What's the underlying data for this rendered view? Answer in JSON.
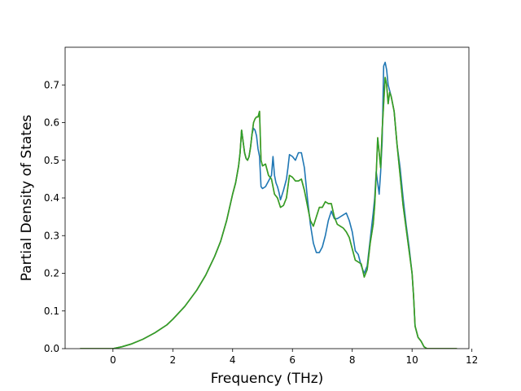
{
  "chart_data": {
    "type": "line",
    "title": "",
    "xlabel": "Frequency (THz)",
    "ylabel": "Partial Density of States",
    "xlim": [
      -1.6,
      11.9
    ],
    "ylim": [
      0.0,
      0.8
    ],
    "xticks": [
      0,
      2,
      4,
      6,
      8,
      10,
      12
    ],
    "xtick_labels": [
      "0",
      "2",
      "4",
      "6",
      "8",
      "10",
      "12"
    ],
    "yticks": [
      0.0,
      0.1,
      0.2,
      0.3,
      0.4,
      0.5,
      0.6,
      0.7
    ],
    "ytick_labels": [
      "0.0",
      "0.1",
      "0.2",
      "0.3",
      "0.4",
      "0.5",
      "0.6",
      "0.7"
    ],
    "grid": false,
    "legend": "none",
    "series": [
      {
        "color": "#1f77b4",
        "x": [
          -1.1,
          -0.5,
          0.0,
          0.3,
          0.6,
          1.0,
          1.4,
          1.8,
          2.0,
          2.4,
          2.8,
          3.1,
          3.4,
          3.6,
          3.8,
          3.9,
          4.0,
          4.1,
          4.2,
          4.25,
          4.3,
          4.35,
          4.4,
          4.45,
          4.5,
          4.55,
          4.6,
          4.65,
          4.7,
          4.75,
          4.8,
          4.85,
          4.9,
          4.95,
          5.0,
          5.1,
          5.2,
          5.3,
          5.35,
          5.4,
          5.45,
          5.5,
          5.55,
          5.6,
          5.7,
          5.8,
          5.85,
          5.9,
          6.0,
          6.1,
          6.2,
          6.3,
          6.4,
          6.5,
          6.6,
          6.7,
          6.8,
          6.9,
          7.0,
          7.1,
          7.2,
          7.3,
          7.4,
          7.5,
          7.6,
          7.7,
          7.8,
          7.9,
          8.0,
          8.1,
          8.2,
          8.3,
          8.4,
          8.5,
          8.6,
          8.7,
          8.75,
          8.8,
          8.85,
          8.9,
          8.95,
          9.0,
          9.05,
          9.1,
          9.15,
          9.2,
          9.3,
          9.4,
          9.5,
          9.6,
          9.7,
          9.8,
          9.9,
          10.0,
          10.05,
          10.1,
          10.2,
          10.3,
          10.4,
          10.5,
          11.5
        ],
        "values": [
          0.0,
          0.0,
          0.0,
          0.005,
          0.012,
          0.025,
          0.042,
          0.063,
          0.078,
          0.112,
          0.155,
          0.195,
          0.245,
          0.285,
          0.34,
          0.375,
          0.41,
          0.44,
          0.485,
          0.52,
          0.58,
          0.55,
          0.52,
          0.505,
          0.5,
          0.51,
          0.535,
          0.57,
          0.585,
          0.58,
          0.565,
          0.53,
          0.51,
          0.43,
          0.425,
          0.43,
          0.445,
          0.46,
          0.51,
          0.46,
          0.44,
          0.43,
          0.415,
          0.395,
          0.42,
          0.45,
          0.48,
          0.515,
          0.51,
          0.5,
          0.52,
          0.52,
          0.48,
          0.4,
          0.33,
          0.28,
          0.255,
          0.255,
          0.27,
          0.3,
          0.34,
          0.365,
          0.345,
          0.345,
          0.35,
          0.355,
          0.36,
          0.34,
          0.31,
          0.26,
          0.25,
          0.22,
          0.2,
          0.22,
          0.29,
          0.36,
          0.4,
          0.47,
          0.44,
          0.41,
          0.47,
          0.55,
          0.75,
          0.76,
          0.74,
          0.7,
          0.67,
          0.63,
          0.54,
          0.48,
          0.4,
          0.33,
          0.27,
          0.2,
          0.14,
          0.06,
          0.03,
          0.02,
          0.005,
          0.0,
          0.0
        ]
      },
      {
        "color": "#ff7f0e",
        "x": [
          -1.1,
          -0.5,
          0.0,
          0.3,
          0.6,
          1.0,
          1.4,
          1.8,
          2.0,
          2.4,
          2.8,
          3.1,
          3.4,
          3.6,
          3.8,
          3.9,
          4.0,
          4.1,
          4.2,
          4.25,
          4.3,
          4.35,
          4.4,
          4.45,
          4.5,
          4.55,
          4.6,
          4.65,
          4.7,
          4.75,
          4.8,
          4.85,
          4.9,
          4.95,
          5.0,
          5.1,
          5.2,
          5.3,
          5.4,
          5.5,
          5.6,
          5.7,
          5.8,
          5.9,
          6.0,
          6.1,
          6.2,
          6.3,
          6.4,
          6.5,
          6.6,
          6.7,
          6.8,
          6.9,
          7.0,
          7.1,
          7.2,
          7.3,
          7.4,
          7.5,
          7.6,
          7.7,
          7.8,
          7.9,
          8.0,
          8.1,
          8.2,
          8.3,
          8.4,
          8.5,
          8.6,
          8.7,
          8.75,
          8.8,
          8.85,
          8.9,
          8.95,
          9.0,
          9.05,
          9.1,
          9.15,
          9.2,
          9.25,
          9.3,
          9.4,
          9.5,
          9.6,
          9.7,
          9.8,
          9.9,
          10.0,
          10.05,
          10.1,
          10.2,
          10.3,
          10.4,
          10.5,
          11.5
        ],
        "values": [
          0.0,
          0.0,
          0.0,
          0.005,
          0.012,
          0.025,
          0.042,
          0.063,
          0.078,
          0.112,
          0.155,
          0.195,
          0.245,
          0.285,
          0.34,
          0.375,
          0.41,
          0.44,
          0.485,
          0.52,
          0.58,
          0.55,
          0.52,
          0.505,
          0.5,
          0.51,
          0.535,
          0.57,
          0.6,
          0.61,
          0.615,
          0.615,
          0.63,
          0.5,
          0.485,
          0.49,
          0.46,
          0.45,
          0.41,
          0.4,
          0.375,
          0.38,
          0.4,
          0.46,
          0.455,
          0.445,
          0.445,
          0.45,
          0.42,
          0.38,
          0.34,
          0.325,
          0.35,
          0.375,
          0.375,
          0.39,
          0.385,
          0.385,
          0.35,
          0.33,
          0.325,
          0.32,
          0.31,
          0.295,
          0.265,
          0.235,
          0.23,
          0.225,
          0.19,
          0.21,
          0.28,
          0.33,
          0.38,
          0.46,
          0.56,
          0.52,
          0.48,
          0.58,
          0.65,
          0.72,
          0.7,
          0.65,
          0.68,
          0.67,
          0.63,
          0.54,
          0.46,
          0.38,
          0.32,
          0.26,
          0.2,
          0.14,
          0.06,
          0.03,
          0.02,
          0.005,
          0.0,
          0.0
        ]
      },
      {
        "color": "#2ca02c",
        "x": [
          -1.1,
          -0.5,
          0.0,
          0.3,
          0.6,
          1.0,
          1.4,
          1.8,
          2.0,
          2.4,
          2.8,
          3.1,
          3.4,
          3.6,
          3.8,
          3.9,
          4.0,
          4.1,
          4.2,
          4.25,
          4.3,
          4.35,
          4.4,
          4.45,
          4.5,
          4.55,
          4.6,
          4.65,
          4.7,
          4.75,
          4.8,
          4.85,
          4.9,
          4.95,
          5.0,
          5.1,
          5.2,
          5.3,
          5.4,
          5.5,
          5.6,
          5.7,
          5.8,
          5.9,
          6.0,
          6.1,
          6.2,
          6.3,
          6.4,
          6.5,
          6.6,
          6.7,
          6.8,
          6.9,
          7.0,
          7.1,
          7.2,
          7.3,
          7.4,
          7.5,
          7.6,
          7.7,
          7.8,
          7.9,
          8.0,
          8.1,
          8.2,
          8.3,
          8.4,
          8.5,
          8.6,
          8.7,
          8.75,
          8.8,
          8.85,
          8.9,
          8.95,
          9.0,
          9.05,
          9.1,
          9.15,
          9.2,
          9.25,
          9.3,
          9.4,
          9.5,
          9.6,
          9.7,
          9.8,
          9.9,
          10.0,
          10.05,
          10.1,
          10.2,
          10.3,
          10.4,
          10.5,
          11.5
        ],
        "values": [
          0.0,
          0.0,
          0.0,
          0.005,
          0.012,
          0.025,
          0.042,
          0.063,
          0.078,
          0.112,
          0.155,
          0.195,
          0.245,
          0.285,
          0.34,
          0.375,
          0.41,
          0.44,
          0.485,
          0.52,
          0.58,
          0.55,
          0.52,
          0.505,
          0.5,
          0.51,
          0.535,
          0.57,
          0.6,
          0.61,
          0.615,
          0.615,
          0.63,
          0.5,
          0.485,
          0.49,
          0.46,
          0.45,
          0.41,
          0.4,
          0.375,
          0.38,
          0.4,
          0.46,
          0.455,
          0.445,
          0.445,
          0.45,
          0.42,
          0.38,
          0.34,
          0.325,
          0.35,
          0.375,
          0.375,
          0.39,
          0.385,
          0.385,
          0.35,
          0.33,
          0.325,
          0.32,
          0.31,
          0.295,
          0.265,
          0.235,
          0.23,
          0.225,
          0.19,
          0.21,
          0.28,
          0.33,
          0.38,
          0.46,
          0.56,
          0.52,
          0.48,
          0.58,
          0.65,
          0.72,
          0.7,
          0.65,
          0.68,
          0.67,
          0.63,
          0.54,
          0.46,
          0.38,
          0.32,
          0.26,
          0.2,
          0.14,
          0.06,
          0.03,
          0.02,
          0.005,
          0.0,
          0.0
        ]
      }
    ]
  }
}
